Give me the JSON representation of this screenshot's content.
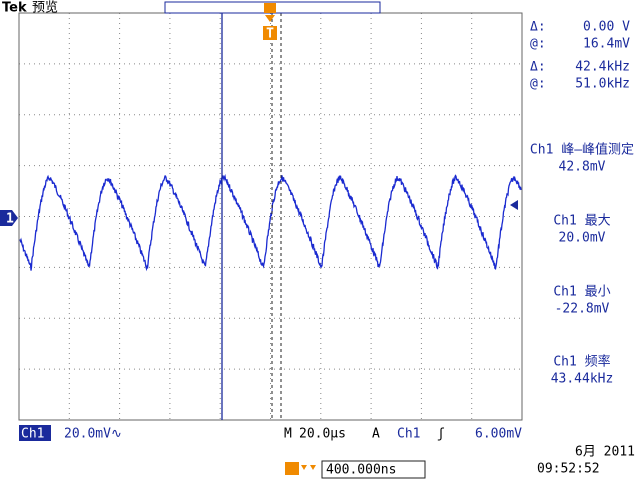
{
  "header": {
    "brand": "Tek",
    "mode": "预览"
  },
  "cursor_readouts": [
    {
      "label": "Δ:",
      "value": "0.00 V"
    },
    {
      "label": "@:",
      "value": "16.4mV"
    },
    {
      "label": "Δ:",
      "value": "42.4kHz"
    },
    {
      "label": "@:",
      "value": "51.0kHz"
    }
  ],
  "measurements": [
    {
      "name": "Ch1 峰—峰值测定",
      "value": "42.8mV"
    },
    {
      "name": "Ch1 最大",
      "value": "20.0mV"
    },
    {
      "name": "Ch1 最小",
      "value": "-22.8mV"
    },
    {
      "name": "Ch1 频率",
      "value": "43.44kHz"
    }
  ],
  "markers": {
    "channel": "1",
    "trigger": "T"
  },
  "status_bar": {
    "channel": "Ch1",
    "scale": "20.0mV∿",
    "timebase_label": "M",
    "timebase": "20.0µs",
    "trigger_mode": "A",
    "trigger_source": "Ch1",
    "trigger_slope": "ʃ",
    "trigger_level": "6.00mV"
  },
  "footer": {
    "trigger_position": "400.000ns",
    "date": "6月 2011",
    "time": "09:52:52"
  }
}
